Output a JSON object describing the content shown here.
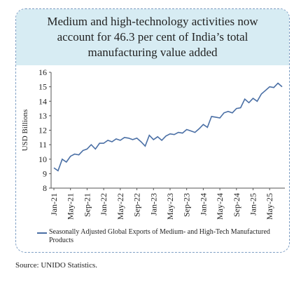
{
  "title": "Medium and high-technology activities now account for 46.3 per cent of India’s total manufacturing value added",
  "source": "Source: UNIDO Statistics.",
  "colors": {
    "line": "#4a6fa5",
    "header_bg": "#d7ecf3",
    "border": "#7f9fc4"
  },
  "chart_data": {
    "type": "line",
    "ylabel": "USD Billions",
    "ylim": [
      8,
      16
    ],
    "yticks": [
      8,
      9,
      10,
      11,
      12,
      13,
      14,
      15,
      16
    ],
    "xticks": [
      "Jan-21",
      "May-21",
      "Sep-21",
      "Jan-22",
      "May-22",
      "Sep-22",
      "Jan-23",
      "May-23",
      "Sep-23",
      "Jan-24",
      "May-24",
      "Sep-24",
      "Jan-25",
      "May-25"
    ],
    "x": [
      "Jan-21",
      "Feb-21",
      "Mar-21",
      "Apr-21",
      "May-21",
      "Jun-21",
      "Jul-21",
      "Aug-21",
      "Sep-21",
      "Oct-21",
      "Nov-21",
      "Dec-21",
      "Jan-22",
      "Feb-22",
      "Mar-22",
      "Apr-22",
      "May-22",
      "Jun-22",
      "Jul-22",
      "Aug-22",
      "Sep-22",
      "Oct-22",
      "Nov-22",
      "Dec-22",
      "Jan-23",
      "Feb-23",
      "Mar-23",
      "Apr-23",
      "May-23",
      "Jun-23",
      "Jul-23",
      "Aug-23",
      "Sep-23",
      "Oct-23",
      "Nov-23",
      "Dec-23",
      "Jan-24",
      "Feb-24",
      "Mar-24",
      "Apr-24",
      "May-24",
      "Jun-24",
      "Jul-24",
      "Aug-24",
      "Sep-24",
      "Oct-24",
      "Nov-24",
      "Dec-24",
      "Jan-25",
      "Feb-25",
      "Mar-25",
      "Apr-25",
      "May-25",
      "Jun-25",
      "Jul-25",
      "Aug-25"
    ],
    "series": [
      {
        "name": "Seasonally Adjusted Global Exports of Medium- and High-Tech Manufactured Products",
        "values": [
          9.4,
          9.2,
          10.0,
          9.8,
          10.2,
          10.35,
          10.3,
          10.6,
          10.7,
          11.0,
          10.7,
          11.1,
          11.1,
          11.3,
          11.2,
          11.4,
          11.3,
          11.5,
          11.45,
          11.35,
          11.45,
          11.2,
          10.9,
          11.65,
          11.35,
          11.55,
          11.3,
          11.6,
          11.75,
          11.7,
          11.85,
          11.8,
          12.05,
          11.95,
          11.85,
          12.1,
          12.4,
          12.2,
          12.95,
          12.9,
          12.85,
          13.2,
          13.3,
          13.2,
          13.5,
          13.55,
          14.15,
          13.9,
          14.2,
          14.0,
          14.5,
          14.75,
          15.0,
          14.95,
          15.25,
          15.0
        ]
      }
    ],
    "legend": "bottom"
  }
}
